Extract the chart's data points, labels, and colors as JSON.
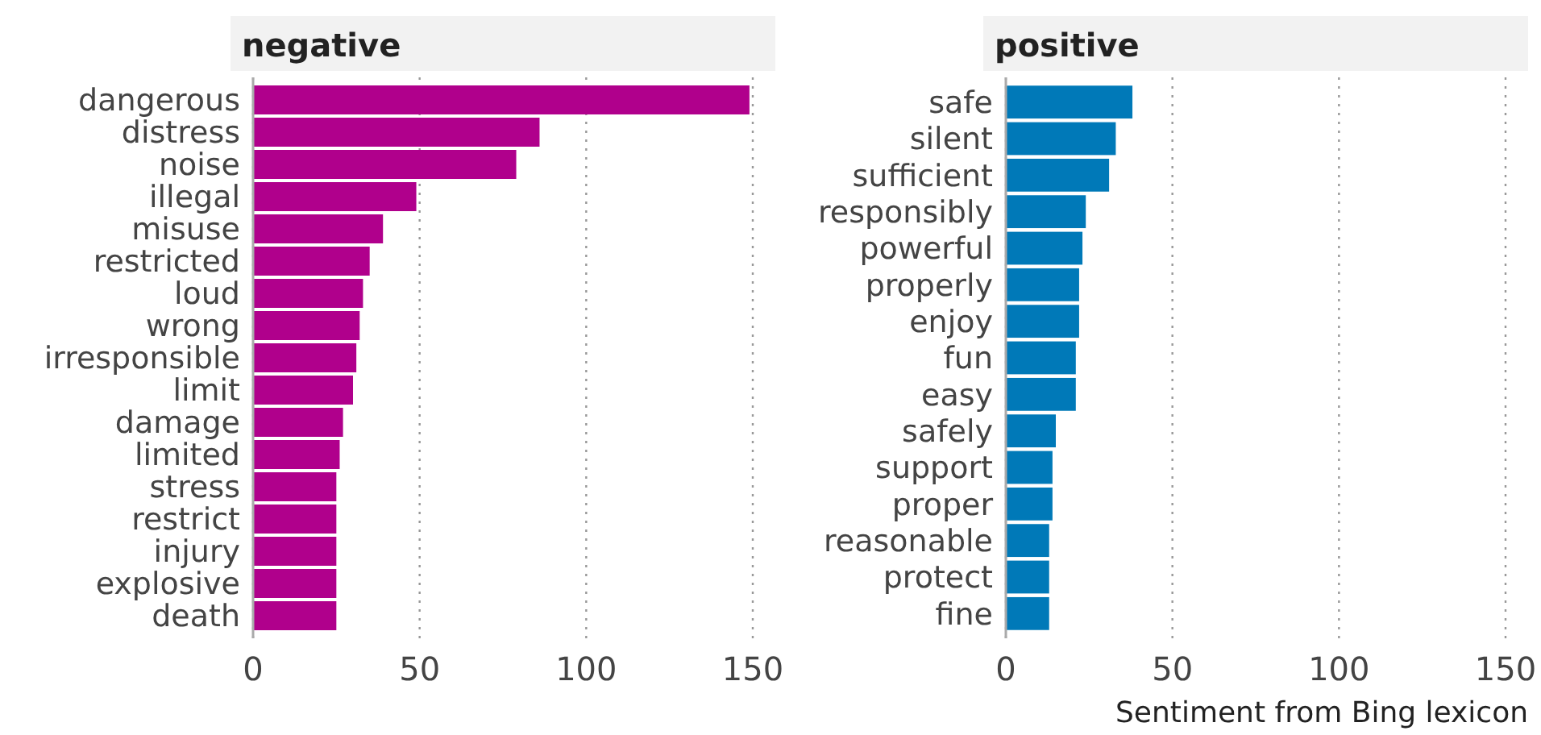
{
  "chart_data": [
    {
      "type": "bar",
      "orientation": "horizontal",
      "title": "negative",
      "categories": [
        "dangerous",
        "distress",
        "noise",
        "illegal",
        "misuse",
        "restricted",
        "loud",
        "wrong",
        "irresponsible",
        "limit",
        "damage",
        "limited",
        "stress",
        "restrict",
        "injury",
        "explosive",
        "death"
      ],
      "values": [
        149,
        86,
        79,
        49,
        39,
        35,
        33,
        32,
        31,
        30,
        27,
        26,
        25,
        25,
        25,
        25,
        25
      ],
      "color": "#b0008c",
      "xlim": [
        0,
        150
      ],
      "xticks": [
        0,
        50,
        100,
        150
      ],
      "grid": "x",
      "line_style": "dotted"
    },
    {
      "type": "bar",
      "orientation": "horizontal",
      "title": "positive",
      "xlabel": "Sentiment from Bing lexicon",
      "categories": [
        "safe",
        "silent",
        "sufficient",
        "responsibly",
        "powerful",
        "properly",
        "enjoy",
        "fun",
        "easy",
        "safely",
        "support",
        "proper",
        "reasonable",
        "protect",
        "fine"
      ],
      "values": [
        38,
        33,
        31,
        24,
        23,
        22,
        22,
        21,
        21,
        15,
        14,
        14,
        13,
        13,
        13
      ],
      "color": "#0079b8",
      "xlim": [
        0,
        150
      ],
      "xticks": [
        0,
        50,
        100,
        150
      ],
      "grid": "x",
      "line_style": "dotted"
    }
  ]
}
